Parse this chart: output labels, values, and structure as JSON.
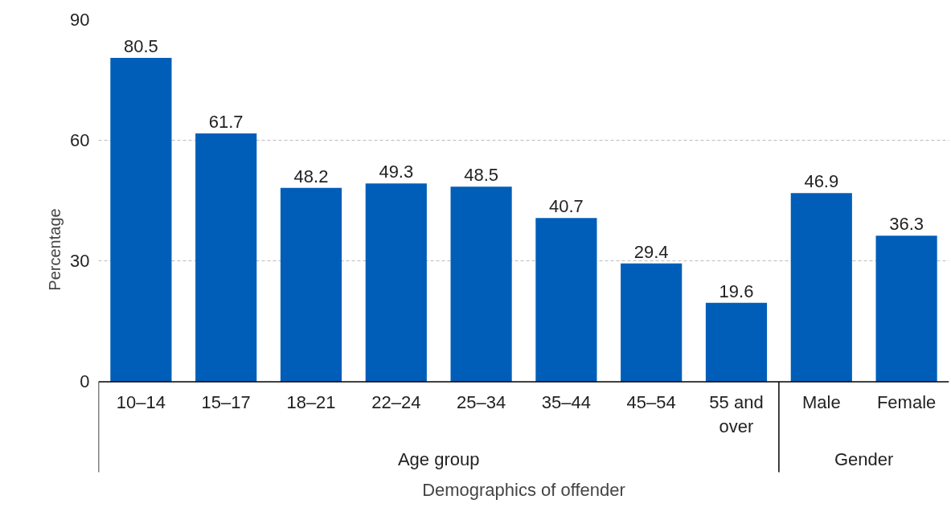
{
  "chart_data": {
    "type": "bar",
    "xlabel": "Demographics of offender",
    "ylabel": "Percentage",
    "categories": [
      "10–14",
      "15–17",
      "18–21",
      "22–24",
      "25–34",
      "35–44",
      "45–54",
      "55 and over",
      "Male",
      "Female"
    ],
    "values": [
      80.5,
      61.7,
      48.2,
      49.3,
      48.5,
      40.7,
      29.4,
      19.6,
      46.9,
      36.3
    ],
    "color": "#005eb8",
    "ylim": [
      0,
      90
    ],
    "yticks": [
      0,
      30,
      60,
      90
    ],
    "grid": "y",
    "data_labels": true,
    "annotations": [
      "Age group",
      "Gender"
    ]
  }
}
